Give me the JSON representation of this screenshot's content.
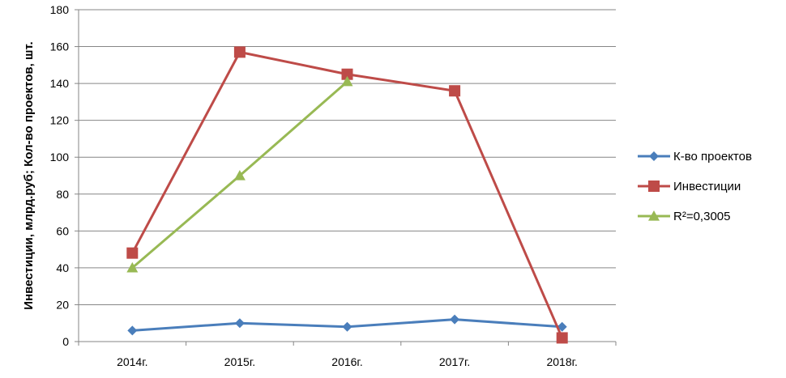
{
  "chart_data": {
    "type": "line",
    "categories": [
      "2014г.",
      "2015г.",
      "2016г.",
      "2017г.",
      "2018г."
    ],
    "ylabel": "Инвестиции, млрд.руб; Кол-во проектов, шт.",
    "ylim": [
      0,
      180
    ],
    "yticks": [
      0,
      20,
      40,
      60,
      80,
      100,
      120,
      140,
      160,
      180
    ],
    "grid": true,
    "legend_position": "right",
    "series": [
      {
        "name": "К-во проектов",
        "values": [
          6,
          10,
          8,
          12,
          8
        ],
        "color": "#4a7ebb",
        "marker": "diamond"
      },
      {
        "name": "Инвестиции",
        "values": [
          48,
          157,
          145,
          136,
          2
        ],
        "color": "#be4b48",
        "marker": "square"
      },
      {
        "name": "R²=0,3005",
        "values": [
          40,
          90,
          141,
          null,
          null
        ],
        "color": "#98b954",
        "marker": "triangle"
      }
    ]
  }
}
